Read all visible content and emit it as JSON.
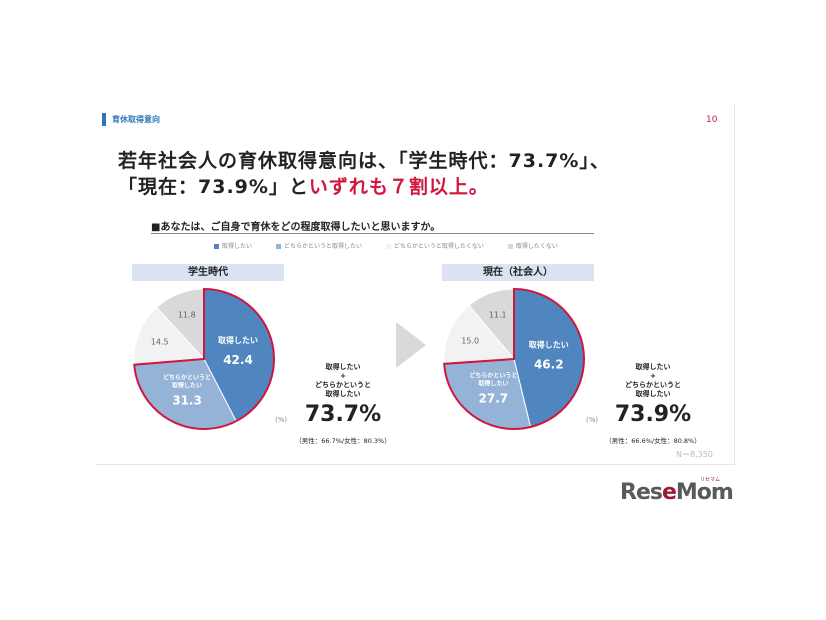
{
  "section_label": "育休取得意向",
  "page_number": "10",
  "headline": {
    "line1": "若年社会人の育休取得意向は、「学生時代：73.7%」、",
    "line2_a": "「現在：73.9%」と",
    "line2_b": "いずれも７割以上。"
  },
  "question": "■あなたは、ご自身で育休をどの程度取得したいと思いますか。",
  "legend": [
    "取得したい",
    "どちらかというと取得したい",
    "どちらかというと取得したくない",
    "取得したくない"
  ],
  "colors": [
    "#4f86c0",
    "#95b3d7",
    "#f2f2f2",
    "#d9d9d9"
  ],
  "highlight_color": "#d0163e",
  "summary_label_lines": [
    "取得したい",
    "+",
    "どちらかというと",
    "取得したい"
  ],
  "unit": "(%)",
  "n_note": "N＝8,350",
  "logo": "ReseMom",
  "logo_sub": "リセマム",
  "chart_data": [
    {
      "type": "pie",
      "title": "学生時代",
      "labels": [
        "取得したい",
        "どちらかというと取得したい",
        "どちらかというと取得したくない",
        "取得したくない"
      ],
      "values": [
        42.4,
        31.3,
        14.5,
        11.8
      ],
      "slice_labels": [
        "取得したい",
        "どちらかというと\n取得したい",
        "",
        ""
      ],
      "summary_total": "73.7%",
      "summary_breakdown": "（男性：66.7%/女性：80.3%）"
    },
    {
      "type": "pie",
      "title": "現在（社会人）",
      "labels": [
        "取得したい",
        "どちらかというと取得したい",
        "どちらかというと取得したくない",
        "取得したくない"
      ],
      "values": [
        46.2,
        27.7,
        15.0,
        11.1
      ],
      "slice_labels": [
        "取得したい",
        "どちらかというと\n取得したい",
        "",
        ""
      ],
      "summary_total": "73.9%",
      "summary_breakdown": "（男性：66.6%/女性：80.8%）"
    }
  ]
}
